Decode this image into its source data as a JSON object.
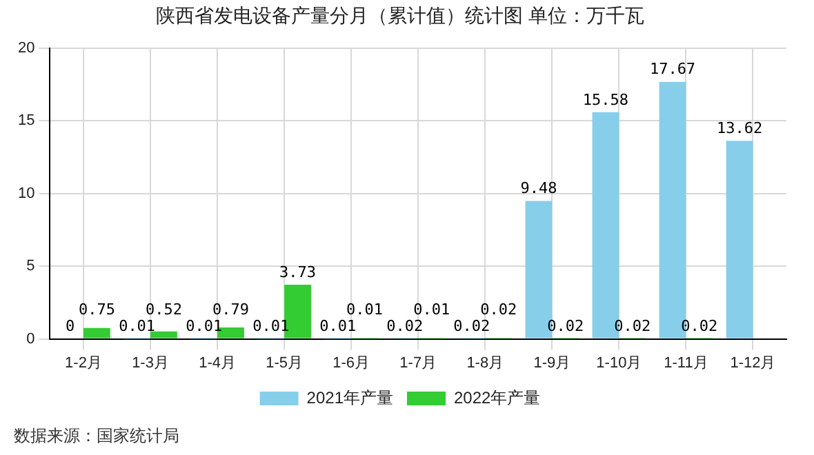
{
  "chart_data": {
    "type": "bar",
    "title": "陕西省发电设备产量分月（累计值）统计图 单位：万千瓦",
    "categories": [
      "1-2月",
      "1-3月",
      "1-4月",
      "1-5月",
      "1-6月",
      "1-7月",
      "1-8月",
      "1-9月",
      "1-10月",
      "1-11月",
      "1-12月"
    ],
    "series": [
      {
        "name": "2021年产量",
        "color": "#87ceeb",
        "values": [
          0,
          0.01,
          0.01,
          0.01,
          0.01,
          0.02,
          0.02,
          9.48,
          15.58,
          17.67,
          13.62
        ]
      },
      {
        "name": "2022年产量",
        "color": "#33cc33",
        "values": [
          0.75,
          0.52,
          0.79,
          3.73,
          0.01,
          0.01,
          0.02,
          0.02,
          0.02,
          0.02,
          null
        ]
      }
    ],
    "ylim": [
      0,
      20
    ],
    "yticks": [
      0,
      5,
      10,
      15,
      20
    ],
    "grid": true,
    "legend": "bottom",
    "data_labels": true,
    "annotations": [
      "数据来源：国家统计局"
    ]
  }
}
